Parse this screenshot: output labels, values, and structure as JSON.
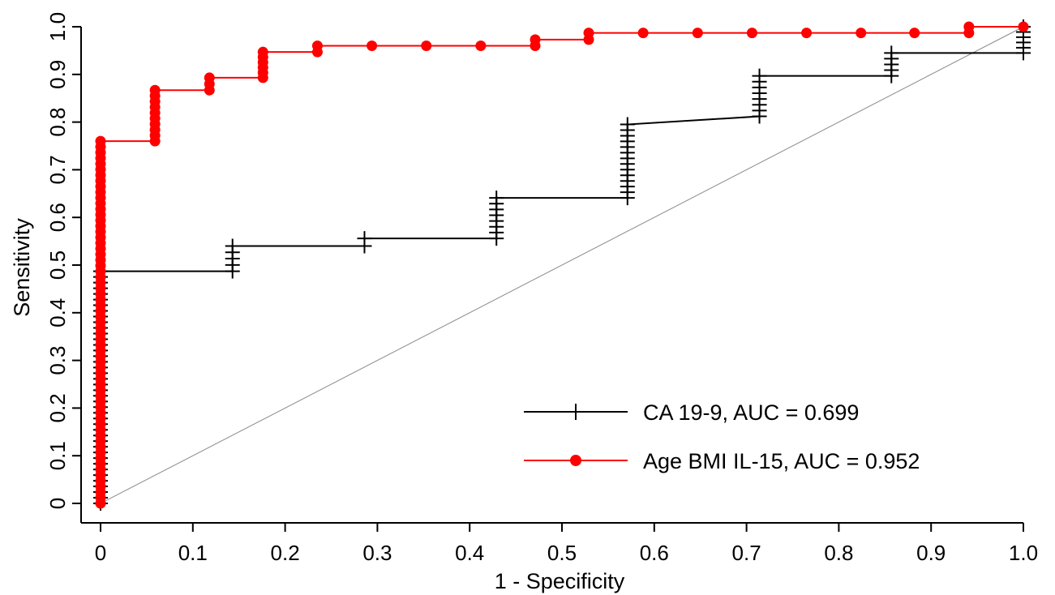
{
  "chart_data": {
    "type": "line",
    "xlabel": "1 - Specificity",
    "ylabel": "Sensitivity",
    "xlim": [
      0,
      1
    ],
    "ylim": [
      0,
      1
    ],
    "x_ticks": [
      {
        "value": 0,
        "label": "0"
      },
      {
        "value": 0.1,
        "label": "0.1"
      },
      {
        "value": 0.2,
        "label": "0.2"
      },
      {
        "value": 0.3,
        "label": "0.3"
      },
      {
        "value": 0.4,
        "label": "0.4"
      },
      {
        "value": 0.5,
        "label": "0.5"
      },
      {
        "value": 0.6,
        "label": "0.6"
      },
      {
        "value": 0.7,
        "label": "0.7"
      },
      {
        "value": 0.8,
        "label": "0.8"
      },
      {
        "value": 0.9,
        "label": "0.9"
      },
      {
        "value": 1.0,
        "label": "1.0"
      }
    ],
    "y_ticks": [
      {
        "value": 0,
        "label": "0"
      },
      {
        "value": 0.1,
        "label": "0.1"
      },
      {
        "value": 0.2,
        "label": "0.2"
      },
      {
        "value": 0.3,
        "label": "0.3"
      },
      {
        "value": 0.4,
        "label": "0.4"
      },
      {
        "value": 0.5,
        "label": "0.5"
      },
      {
        "value": 0.6,
        "label": "0.6"
      },
      {
        "value": 0.7,
        "label": "0.7"
      },
      {
        "value": 0.8,
        "label": "0.8"
      },
      {
        "value": 0.9,
        "label": "0.9"
      },
      {
        "value": 1.0,
        "label": "1.0"
      }
    ],
    "grid": false,
    "legend_position": "bottom-right",
    "reference_line": {
      "from": [
        0,
        0
      ],
      "to": [
        1,
        1
      ],
      "color": "#8a8a8a"
    },
    "series": [
      {
        "name": "CA 19-9, AUC = 0.699",
        "color": "#000000",
        "marker": "plus",
        "step_points": [
          [
            0,
            0
          ],
          [
            0,
            0.487
          ],
          [
            0.143,
            0.487
          ],
          [
            0.143,
            0.54
          ],
          [
            0.286,
            0.54
          ],
          [
            0.286,
            0.556
          ],
          [
            0.429,
            0.556
          ],
          [
            0.429,
            0.641
          ],
          [
            0.571,
            0.641
          ],
          [
            0.571,
            0.795
          ],
          [
            0.714,
            0.812
          ],
          [
            0.714,
            0.897
          ],
          [
            0.857,
            0.897
          ],
          [
            0.857,
            0.945
          ],
          [
            1.0,
            0.945
          ],
          [
            1.0,
            1.0
          ]
        ],
        "marker_groups": [
          {
            "x": 0,
            "y_from": 0,
            "y_to": 0.487
          },
          {
            "x": 0.143,
            "y_from": 0.487,
            "y_to": 0.54
          },
          {
            "x": 0.286,
            "y_from": 0.54,
            "y_to": 0.556
          },
          {
            "x": 0.429,
            "y_from": 0.556,
            "y_to": 0.641
          },
          {
            "x": 0.571,
            "y_from": 0.641,
            "y_to": 0.795
          },
          {
            "x": 0.714,
            "y_from": 0.812,
            "y_to": 0.897
          },
          {
            "x": 0.857,
            "y_from": 0.897,
            "y_to": 0.945
          },
          {
            "x": 1.0,
            "y_from": 0.945,
            "y_to": 1.0
          }
        ]
      },
      {
        "name": "Age BMI IL-15, AUC = 0.952",
        "color": "#ff0000",
        "marker": "circle",
        "step_points": [
          [
            0,
            0
          ],
          [
            0,
            0.76
          ],
          [
            0.059,
            0.76
          ],
          [
            0.059,
            0.867
          ],
          [
            0.118,
            0.867
          ],
          [
            0.118,
            0.893
          ],
          [
            0.176,
            0.893
          ],
          [
            0.176,
            0.947
          ],
          [
            0.235,
            0.947
          ],
          [
            0.235,
            0.96
          ],
          [
            0.471,
            0.96
          ],
          [
            0.471,
            0.973
          ],
          [
            0.529,
            0.973
          ],
          [
            0.529,
            0.987
          ],
          [
            0.941,
            0.987
          ],
          [
            0.941,
            1.0
          ],
          [
            1.0,
            1.0
          ]
        ],
        "marker_groups": [
          {
            "x": 0,
            "y_from": 0,
            "y_to": 0.76
          },
          {
            "x": 0.059,
            "y_from": 0.76,
            "y_to": 0.867
          },
          {
            "x": 0.118,
            "y_from": 0.867,
            "y_to": 0.893
          },
          {
            "x": 0.176,
            "y_from": 0.893,
            "y_to": 0.947
          },
          {
            "x": 0.235,
            "y_from": 0.947,
            "y_to": 0.96
          }
        ],
        "marker_points": [
          [
            0.294,
            0.96
          ],
          [
            0.353,
            0.96
          ],
          [
            0.412,
            0.96
          ],
          [
            0.471,
            0.96
          ],
          [
            0.471,
            0.973
          ],
          [
            0.529,
            0.973
          ],
          [
            0.529,
            0.987
          ],
          [
            0.588,
            0.987
          ],
          [
            0.647,
            0.987
          ],
          [
            0.706,
            0.987
          ],
          [
            0.765,
            0.987
          ],
          [
            0.824,
            0.987
          ],
          [
            0.882,
            0.987
          ],
          [
            0.941,
            0.987
          ],
          [
            0.941,
            1.0
          ],
          [
            1.0,
            1.0
          ]
        ]
      }
    ]
  }
}
